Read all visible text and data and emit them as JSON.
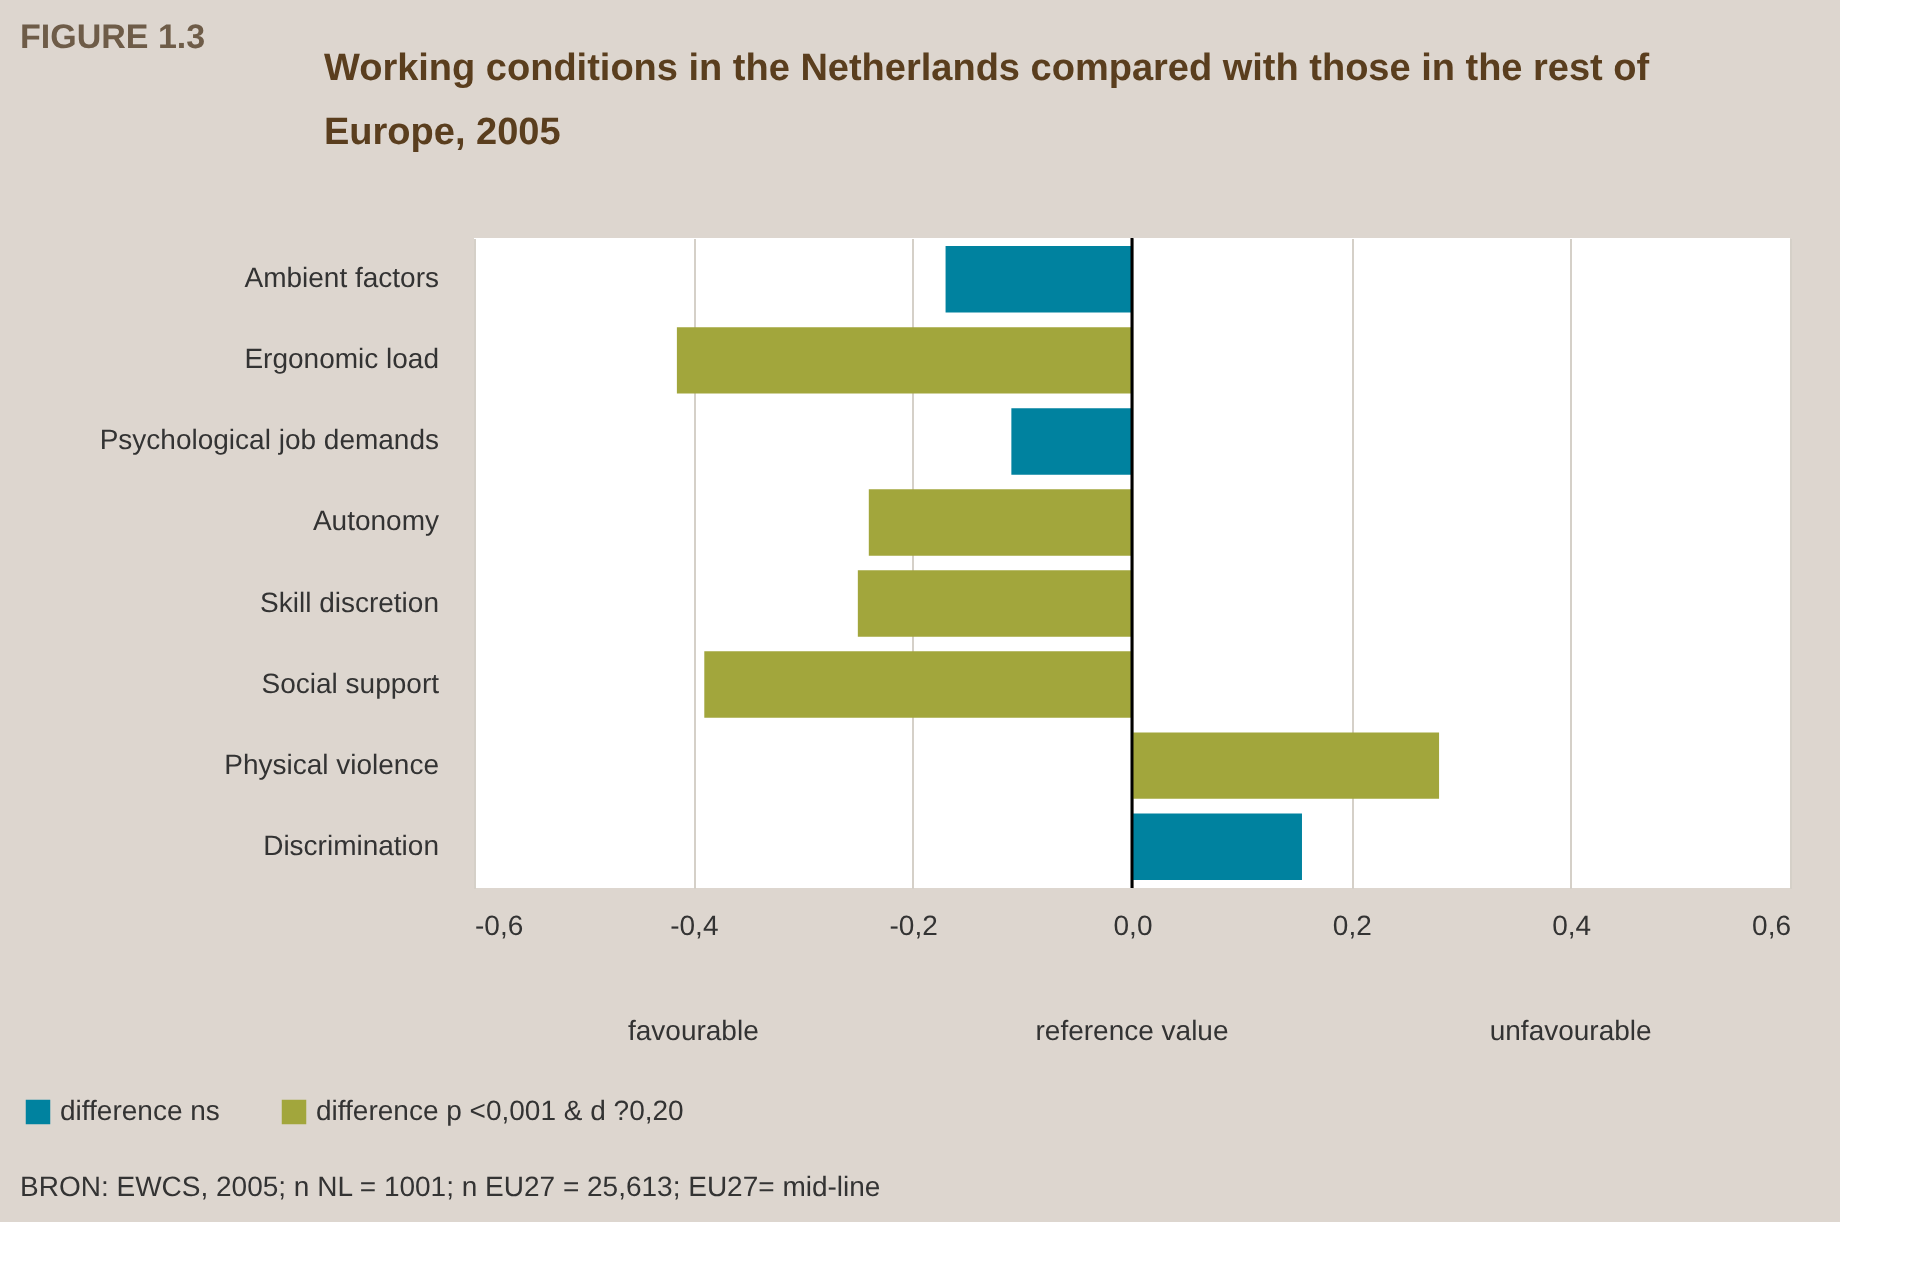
{
  "chart_data": {
    "type": "bar",
    "orientation": "horizontal",
    "title": "Working conditions in the Netherlands compared with those in the rest of Europe, 2005",
    "categories": [
      "Ambient factors",
      "Ergonomic load",
      "Psychological job demands",
      "Autonomy",
      "Skill discretion",
      "Social support",
      "Physical violence",
      "Discrimination"
    ],
    "series": [
      {
        "name": "difference ns",
        "color": "#00829f",
        "values": [
          -0.17,
          null,
          -0.11,
          null,
          null,
          null,
          null,
          0.155
        ]
      },
      {
        "name": "difference p <0,001 & d ?0,20",
        "color": "#a2a63c",
        "values": [
          null,
          -0.415,
          null,
          -0.24,
          -0.25,
          -0.39,
          0.28,
          null
        ]
      }
    ],
    "xlim": [
      -0.6,
      0.6
    ],
    "xticks": [
      {
        "value": -0.6,
        "label": "-0,6"
      },
      {
        "value": -0.4,
        "label": "-0,4"
      },
      {
        "value": -0.2,
        "label": "-0,2"
      },
      {
        "value": 0,
        "label": "0,0"
      },
      {
        "value": 0.2,
        "label": "0,2"
      },
      {
        "value": 0.4,
        "label": "0,4"
      },
      {
        "value": 0.6,
        "label": "0,6"
      }
    ],
    "grid": "x",
    "legend": "bottom left",
    "ref_lines": [
      {
        "axis": "x",
        "value": 0,
        "color": "#000000"
      }
    ],
    "annotations": [
      "FIGURE 1.3",
      "favourable",
      "reference value",
      "unfavourable",
      "BRON: EWCS, 2005; n NL = 1001; n EU27 = 25,613; EU27= mid-line"
    ]
  }
}
